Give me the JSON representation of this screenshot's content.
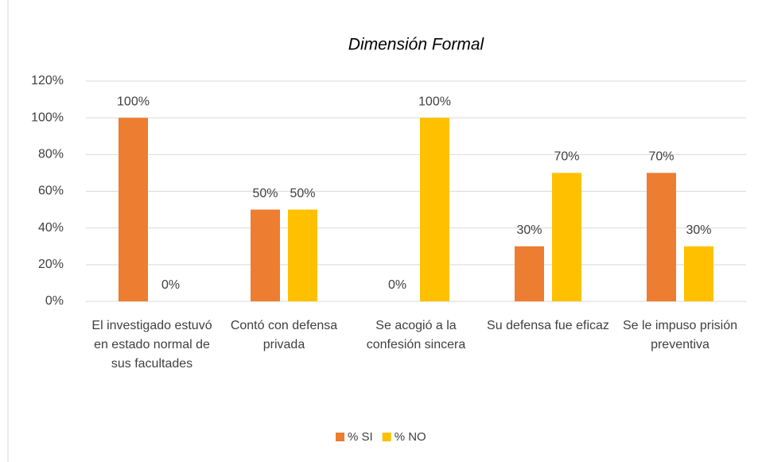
{
  "chart_data": {
    "type": "bar",
    "title": "Dimensión Formal",
    "categories": [
      "El investigado estuvó en estado normal de sus facultades",
      "Contó con defensa privada",
      "Se acogió a la confesión sincera",
      "Su defensa fue eficaz",
      "Se le impuso prisión preventiva"
    ],
    "series": [
      {
        "name": "% SI",
        "color": "#ed7d31",
        "values": [
          100,
          50,
          0,
          30,
          70
        ],
        "value_labels": [
          "100%",
          "50%",
          "0%",
          "30%",
          "70%"
        ]
      },
      {
        "name": "% NO",
        "color": "#ffc000",
        "values": [
          0,
          50,
          100,
          70,
          30
        ],
        "value_labels": [
          "0%",
          "50%",
          "100%",
          "70%",
          "30%"
        ]
      }
    ],
    "ylim": [
      0,
      120
    ],
    "yticks": [
      {
        "value": 0,
        "label": "0%"
      },
      {
        "value": 20,
        "label": "20%"
      },
      {
        "value": 40,
        "label": "40%"
      },
      {
        "value": 60,
        "label": "60%"
      },
      {
        "value": 80,
        "label": "80%"
      },
      {
        "value": 100,
        "label": "100%"
      },
      {
        "value": 120,
        "label": "120%"
      }
    ],
    "grid": true,
    "legend": "bottom"
  }
}
